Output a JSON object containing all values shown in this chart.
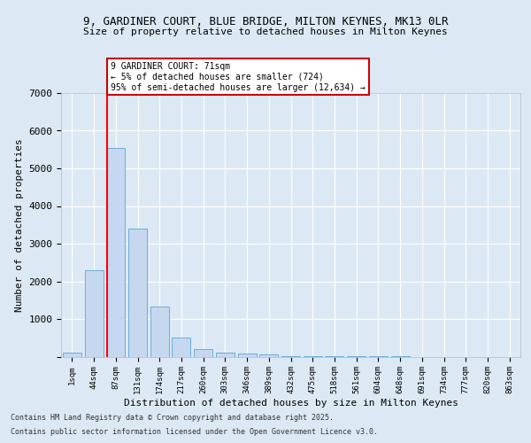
{
  "title1": "9, GARDINER COURT, BLUE BRIDGE, MILTON KEYNES, MK13 0LR",
  "title2": "Size of property relative to detached houses in Milton Keynes",
  "xlabel": "Distribution of detached houses by size in Milton Keynes",
  "ylabel": "Number of detached properties",
  "footer1": "Contains HM Land Registry data © Crown copyright and database right 2025.",
  "footer2": "Contains public sector information licensed under the Open Government Licence v3.0.",
  "bar_labels": [
    "1sqm",
    "44sqm",
    "87sqm",
    "131sqm",
    "174sqm",
    "217sqm",
    "260sqm",
    "303sqm",
    "346sqm",
    "389sqm",
    "432sqm",
    "475sqm",
    "518sqm",
    "561sqm",
    "604sqm",
    "648sqm",
    "691sqm",
    "734sqm",
    "777sqm",
    "820sqm",
    "863sqm"
  ],
  "bar_values": [
    100,
    2300,
    5550,
    3400,
    1320,
    500,
    200,
    100,
    80,
    50,
    10,
    5,
    3,
    2,
    1,
    1,
    0,
    0,
    0,
    0,
    0
  ],
  "bar_color": "#c5d8f0",
  "bar_edge_color": "#6aadda",
  "background_color": "#dce9f5",
  "grid_color": "#ffffff",
  "red_line_x": 1.62,
  "annotation_text": "9 GARDINER COURT: 71sqm\n← 5% of detached houses are smaller (724)\n95% of semi-detached houses are larger (12,634) →",
  "annotation_box_color": "#ffffff",
  "annotation_box_edge": "#cc0000",
  "ylim": [
    0,
    7000
  ],
  "yticks": [
    0,
    1000,
    2000,
    3000,
    4000,
    5000,
    6000,
    7000
  ]
}
